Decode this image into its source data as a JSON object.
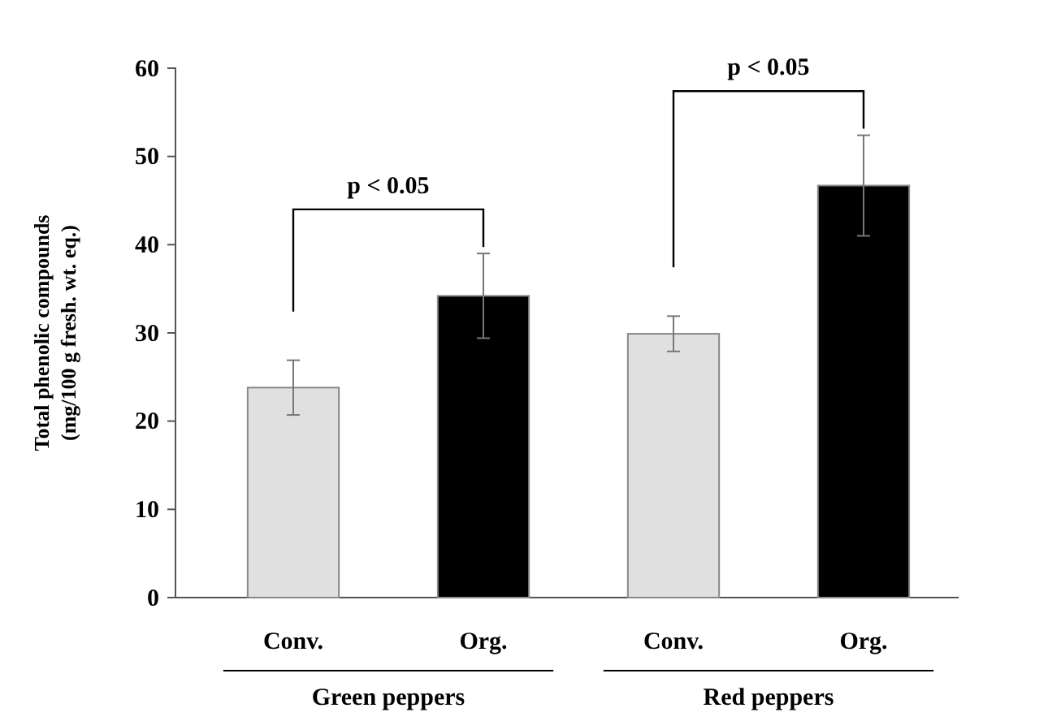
{
  "chart_data": {
    "type": "bar",
    "ylabel": "Total phenolic compounds\n(mg/100 g fresh. wt. eq.)",
    "categories": [
      "Conv.",
      "Org.",
      "Conv.",
      "Org."
    ],
    "values": [
      23.8,
      34.2,
      29.9,
      46.7
    ],
    "colors": [
      "#e0e0e0",
      "#000000",
      "#e0e0e0",
      "#000000"
    ],
    "errors": [
      3.1,
      4.8,
      2.0,
      5.7
    ],
    "ylim": [
      0,
      60
    ],
    "yticks": [
      0,
      10,
      20,
      30,
      40,
      50,
      60
    ],
    "annotations": [
      "p < 0.05",
      "p < 0.05",
      "Green peppers",
      "Red peppers"
    ]
  }
}
